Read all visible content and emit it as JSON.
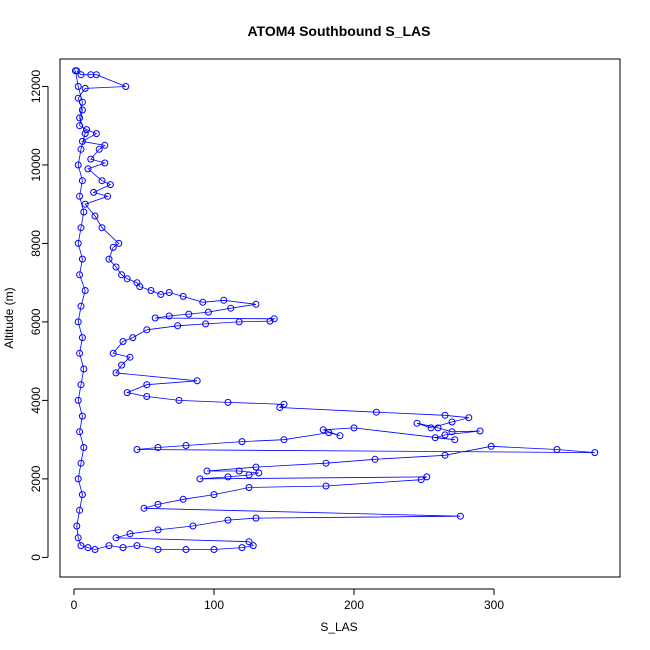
{
  "chart_data": {
    "type": "scatter",
    "title": "ATOM4 Southbound S_LAS",
    "xlabel": "S_LAS",
    "ylabel": "Altitude (m)",
    "xlim": [
      -10,
      390
    ],
    "ylim": [
      -500,
      12700
    ],
    "x_ticks": [
      0,
      100,
      200,
      300
    ],
    "y_ticks": [
      0,
      2000,
      4000,
      6000,
      8000,
      10000,
      12000
    ],
    "x_tick_labels": [
      "0",
      "100",
      "200",
      "300"
    ],
    "y_tick_labels": [
      "0",
      "2000",
      "4000",
      "6000",
      "8000",
      "10000",
      "12000"
    ],
    "grid": false,
    "style": "points connected by lines (open circles)",
    "series": [
      {
        "color": "#0000ff",
        "points": [
          [
            2,
            12400
          ],
          [
            5,
            12300
          ],
          [
            12,
            12300
          ],
          [
            16,
            12300
          ],
          [
            37,
            12000
          ],
          [
            8,
            11950
          ],
          [
            3,
            11700
          ],
          [
            6,
            11400
          ],
          [
            4,
            11000
          ],
          [
            9,
            10900
          ],
          [
            16,
            10800
          ],
          [
            6,
            10600
          ],
          [
            22,
            10500
          ],
          [
            18,
            10400
          ],
          [
            12,
            10150
          ],
          [
            22,
            10050
          ],
          [
            10,
            9900
          ],
          [
            20,
            9600
          ],
          [
            26,
            9500
          ],
          [
            14,
            9300
          ],
          [
            24,
            9200
          ],
          [
            8,
            9000
          ],
          [
            15,
            8700
          ],
          [
            20,
            8400
          ],
          [
            32,
            8000
          ],
          [
            28,
            7900
          ],
          [
            25,
            7600
          ],
          [
            30,
            7400
          ],
          [
            34,
            7200
          ],
          [
            38,
            7100
          ],
          [
            45,
            7000
          ],
          [
            47,
            6900
          ],
          [
            55,
            6800
          ],
          [
            62,
            6700
          ],
          [
            68,
            6750
          ],
          [
            78,
            6650
          ],
          [
            92,
            6500
          ],
          [
            107,
            6550
          ],
          [
            130,
            6450
          ],
          [
            112,
            6350
          ],
          [
            96,
            6250
          ],
          [
            82,
            6200
          ],
          [
            68,
            6150
          ],
          [
            58,
            6100
          ],
          [
            143,
            6080
          ],
          [
            140,
            6020
          ],
          [
            118,
            6000
          ],
          [
            94,
            5950
          ],
          [
            74,
            5900
          ],
          [
            52,
            5800
          ],
          [
            42,
            5600
          ],
          [
            35,
            5500
          ],
          [
            28,
            5200
          ],
          [
            40,
            5100
          ],
          [
            34,
            4900
          ],
          [
            30,
            4700
          ],
          [
            88,
            4500
          ],
          [
            52,
            4400
          ],
          [
            38,
            4200
          ],
          [
            52,
            4100
          ],
          [
            75,
            4000
          ],
          [
            110,
            3950
          ],
          [
            150,
            3900
          ],
          [
            147,
            3820
          ],
          [
            216,
            3700
          ],
          [
            265,
            3620
          ],
          [
            282,
            3560
          ],
          [
            270,
            3450
          ],
          [
            255,
            3300
          ],
          [
            245,
            3420
          ],
          [
            260,
            3300
          ],
          [
            270,
            3200
          ],
          [
            290,
            3220
          ],
          [
            265,
            3120
          ],
          [
            258,
            3050
          ],
          [
            272,
            3000
          ],
          [
            200,
            3300
          ],
          [
            178,
            3250
          ],
          [
            190,
            3100
          ],
          [
            182,
            3180
          ],
          [
            150,
            3000
          ],
          [
            120,
            2950
          ],
          [
            80,
            2850
          ],
          [
            60,
            2800
          ],
          [
            45,
            2750
          ],
          [
            372,
            2670
          ],
          [
            345,
            2750
          ],
          [
            298,
            2830
          ],
          [
            265,
            2600
          ],
          [
            215,
            2500
          ],
          [
            180,
            2400
          ],
          [
            130,
            2300
          ],
          [
            95,
            2200
          ],
          [
            118,
            2200
          ],
          [
            132,
            2150
          ],
          [
            125,
            2100
          ],
          [
            110,
            2050
          ],
          [
            90,
            2000
          ],
          [
            252,
            2050
          ],
          [
            248,
            1980
          ],
          [
            180,
            1820
          ],
          [
            125,
            1780
          ],
          [
            100,
            1600
          ],
          [
            78,
            1480
          ],
          [
            60,
            1350
          ],
          [
            50,
            1250
          ],
          [
            276,
            1050
          ],
          [
            130,
            1000
          ],
          [
            110,
            950
          ],
          [
            85,
            800
          ],
          [
            60,
            700
          ],
          [
            40,
            600
          ],
          [
            30,
            500
          ],
          [
            125,
            400
          ],
          [
            128,
            300
          ],
          [
            120,
            250
          ],
          [
            100,
            200
          ],
          [
            80,
            200
          ],
          [
            60,
            200
          ],
          [
            45,
            300
          ],
          [
            35,
            250
          ],
          [
            25,
            300
          ],
          [
            15,
            200
          ],
          [
            10,
            250
          ],
          [
            5,
            300
          ],
          [
            3,
            500
          ],
          [
            2,
            800
          ],
          [
            4,
            1200
          ],
          [
            6,
            1600
          ],
          [
            3,
            2000
          ],
          [
            5,
            2400
          ],
          [
            7,
            2800
          ],
          [
            4,
            3200
          ],
          [
            6,
            3600
          ],
          [
            3,
            4000
          ],
          [
            5,
            4400
          ],
          [
            7,
            4800
          ],
          [
            4,
            5200
          ],
          [
            6,
            5600
          ],
          [
            3,
            6000
          ],
          [
            5,
            6400
          ],
          [
            8,
            6800
          ],
          [
            4,
            7200
          ],
          [
            6,
            7600
          ],
          [
            3,
            8000
          ],
          [
            5,
            8400
          ],
          [
            7,
            8800
          ],
          [
            4,
            9200
          ],
          [
            6,
            9600
          ],
          [
            3,
            10000
          ],
          [
            5,
            10400
          ],
          [
            8,
            10800
          ],
          [
            4,
            11200
          ],
          [
            6,
            11600
          ],
          [
            3,
            12000
          ],
          [
            1,
            12400
          ]
        ]
      }
    ]
  }
}
